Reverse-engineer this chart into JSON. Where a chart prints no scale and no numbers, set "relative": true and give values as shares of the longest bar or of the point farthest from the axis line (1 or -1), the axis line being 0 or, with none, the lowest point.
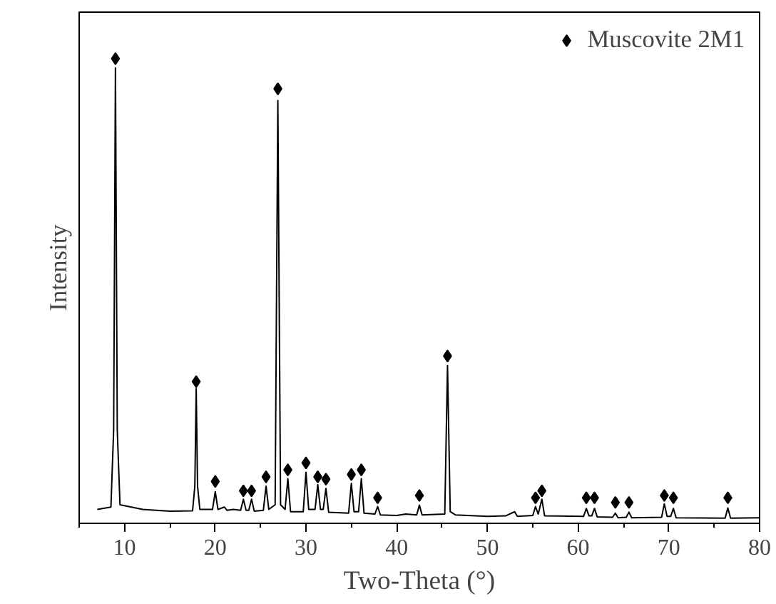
{
  "chart_data": {
    "type": "line",
    "relative": true,
    "xlabel": "Two-Theta (°)",
    "ylabel": "Intensity",
    "xlim": [
      5,
      80
    ],
    "xticks": [
      10,
      20,
      30,
      40,
      50,
      60,
      70,
      80
    ],
    "tick_labels": "x",
    "grid": false,
    "legend": "top right",
    "series": [
      {
        "color": "#000000",
        "x": [
          7.0,
          8.5,
          8.8,
          9.0,
          9.2,
          9.5,
          12,
          15,
          17.5,
          17.75,
          17.9,
          18.05,
          18.3,
          19.7,
          20.0,
          20.3,
          21,
          21.3,
          22,
          22.8,
          23.1,
          23.4,
          23.7,
          24.0,
          24.3,
          25.3,
          25.6,
          25.9,
          26.6,
          26.9,
          27.2,
          27.7,
          28.0,
          28.3,
          29.7,
          30.0,
          30.3,
          31.0,
          31.3,
          31.6,
          31.9,
          32.2,
          32.5,
          34.7,
          35.0,
          35.3,
          35.8,
          36.1,
          36.4,
          37.6,
          37.9,
          38.2,
          40,
          41,
          42.2,
          42.5,
          42.8,
          45.3,
          45.6,
          45.9,
          46.5,
          50,
          52,
          53.0,
          53.3,
          55.0,
          55.3,
          55.6,
          56.0,
          56.3,
          60.6,
          60.9,
          61.2,
          61.5,
          61.8,
          62.1,
          63.8,
          64.1,
          64.4,
          65.3,
          65.6,
          65.9,
          69.2,
          69.5,
          69.8,
          70.2,
          70.5,
          70.8,
          76.2,
          76.5,
          76.8,
          80
        ],
        "values": [
          0.03,
          0.035,
          0.2,
          0.98,
          0.2,
          0.04,
          0.03,
          0.026,
          0.027,
          0.08,
          0.29,
          0.08,
          0.03,
          0.03,
          0.068,
          0.03,
          0.035,
          0.028,
          0.03,
          0.028,
          0.052,
          0.028,
          0.028,
          0.052,
          0.026,
          0.028,
          0.08,
          0.03,
          0.04,
          0.91,
          0.04,
          0.03,
          0.096,
          0.025,
          0.025,
          0.11,
          0.03,
          0.03,
          0.083,
          0.03,
          0.03,
          0.075,
          0.024,
          0.022,
          0.086,
          0.025,
          0.025,
          0.096,
          0.022,
          0.02,
          0.036,
          0.018,
          0.017,
          0.02,
          0.018,
          0.039,
          0.018,
          0.02,
          0.34,
          0.025,
          0.018,
          0.015,
          0.016,
          0.025,
          0.015,
          0.017,
          0.036,
          0.02,
          0.052,
          0.016,
          0.015,
          0.032,
          0.016,
          0.016,
          0.032,
          0.014,
          0.013,
          0.022,
          0.012,
          0.013,
          0.024,
          0.012,
          0.013,
          0.042,
          0.015,
          0.015,
          0.032,
          0.012,
          0.011,
          0.033,
          0.011,
          0.012
        ]
      },
      {
        "type": "scatter",
        "name": "Muscovite 2M1",
        "color": "#000000",
        "marker": "diamond",
        "x": [
          9.0,
          17.9,
          20.0,
          23.1,
          24.0,
          25.6,
          26.9,
          28.0,
          30.0,
          31.3,
          32.2,
          35.0,
          36.1,
          37.9,
          42.5,
          45.6,
          55.3,
          56.0,
          60.9,
          61.8,
          64.1,
          65.6,
          69.5,
          70.5,
          76.5
        ],
        "values": [
          1.0,
          0.305,
          0.09,
          0.07,
          0.07,
          0.1,
          0.935,
          0.115,
          0.13,
          0.1,
          0.095,
          0.105,
          0.115,
          0.055,
          0.06,
          0.36,
          0.055,
          0.07,
          0.055,
          0.055,
          0.045,
          0.045,
          0.06,
          0.055,
          0.055
        ]
      }
    ]
  }
}
